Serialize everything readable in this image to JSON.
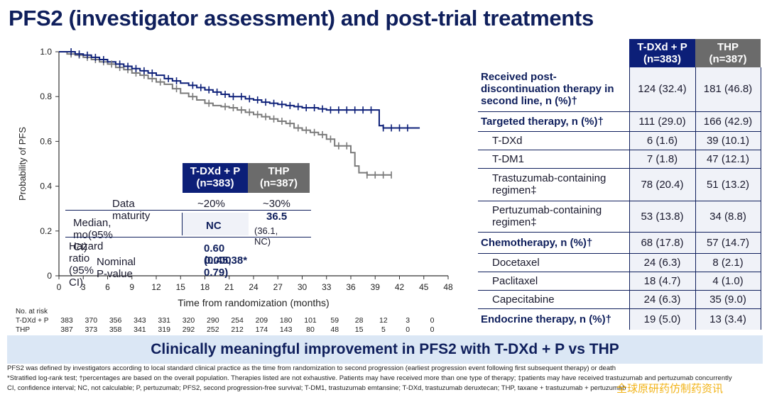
{
  "title": "PFS2 (investigator assessment) and post-trial treatments",
  "chart_data": {
    "type": "line",
    "subtype": "kaplan-meier",
    "xlabel": "Time from randomization (months)",
    "ylabel": "Probability of PFS",
    "xlim": [
      0,
      48
    ],
    "ylim": [
      0,
      1.0
    ],
    "xticks": [
      0,
      3,
      6,
      9,
      12,
      15,
      18,
      21,
      24,
      27,
      30,
      33,
      36,
      39,
      42,
      45,
      48
    ],
    "yticks": [
      {
        "v": 0,
        "label": "0"
      },
      {
        "v": 0.2,
        "label": "0.2"
      },
      {
        "v": 0.4,
        "label": "0.4"
      },
      {
        "v": 0.6,
        "label": "0.6"
      },
      {
        "v": 0.8,
        "label": "0.8"
      },
      {
        "v": 1.0,
        "label": "1.0"
      }
    ],
    "series": [
      {
        "name": "T-DXd + P",
        "color": "#0c1f78",
        "x": [
          0,
          1,
          2,
          3,
          4,
          5,
          6,
          7,
          8,
          9,
          10,
          11,
          12,
          13,
          14,
          15,
          16,
          17,
          18,
          19,
          20,
          21,
          22,
          23,
          24,
          25,
          26,
          27,
          28,
          29,
          30,
          31,
          32,
          33,
          34,
          35,
          36,
          37,
          38,
          39,
          39.5,
          40,
          41,
          42,
          44.5
        ],
        "y": [
          1.0,
          1.0,
          0.99,
          0.985,
          0.975,
          0.965,
          0.955,
          0.945,
          0.935,
          0.925,
          0.915,
          0.905,
          0.895,
          0.88,
          0.87,
          0.86,
          0.85,
          0.84,
          0.83,
          0.82,
          0.81,
          0.8,
          0.8,
          0.79,
          0.785,
          0.775,
          0.77,
          0.765,
          0.76,
          0.755,
          0.75,
          0.75,
          0.745,
          0.74,
          0.74,
          0.74,
          0.74,
          0.74,
          0.74,
          0.74,
          0.67,
          0.66,
          0.66,
          0.66,
          0.66
        ],
        "censors": [
          1.5,
          2.5,
          3.5,
          4.5,
          5.5,
          7.5,
          8.5,
          9.5,
          10.5,
          11.5,
          13.5,
          14.5,
          16.5,
          17.5,
          18.5,
          19.5,
          20.5,
          21.5,
          22.5,
          23.5,
          24.5,
          25.5,
          26.5,
          27.5,
          28.5,
          29.5,
          30.5,
          31.5,
          32.5,
          33.5,
          34.5,
          35.5,
          36.5,
          37.5,
          38.5,
          40,
          41,
          42,
          43
        ]
      },
      {
        "name": "THP",
        "color": "#7a7a7a",
        "x": [
          0,
          1,
          2,
          3,
          4,
          5,
          6,
          7,
          8,
          9,
          10,
          11,
          12,
          13,
          14,
          15,
          16,
          17,
          18,
          19,
          20,
          21,
          22,
          23,
          24,
          25,
          26,
          27,
          28,
          29,
          30,
          31,
          32,
          33,
          34,
          35,
          36,
          36.5,
          37,
          38,
          39,
          40,
          41
        ],
        "y": [
          1.0,
          0.99,
          0.985,
          0.975,
          0.965,
          0.955,
          0.945,
          0.93,
          0.92,
          0.905,
          0.895,
          0.88,
          0.865,
          0.855,
          0.835,
          0.815,
          0.8,
          0.785,
          0.77,
          0.76,
          0.755,
          0.75,
          0.74,
          0.73,
          0.72,
          0.71,
          0.7,
          0.69,
          0.68,
          0.66,
          0.65,
          0.64,
          0.63,
          0.61,
          0.58,
          0.58,
          0.55,
          0.49,
          0.46,
          0.45,
          0.45,
          0.45,
          0.45
        ],
        "censors": [
          1.5,
          2.5,
          3.5,
          4.5,
          5.5,
          6.5,
          7.5,
          8.5,
          9.5,
          10.5,
          11.5,
          12.5,
          14.5,
          16.5,
          18.5,
          20.5,
          21.5,
          22.5,
          23.5,
          24.5,
          25.5,
          26.5,
          27.5,
          28.5,
          29.5,
          30.5,
          31.5,
          32.5,
          33.5,
          34.5,
          35.5,
          38,
          39,
          40,
          41
        ]
      }
    ],
    "risk_table": {
      "header": "No. at risk",
      "rows": [
        {
          "label": "T-DXd + P",
          "values": [
            "383",
            "370",
            "356",
            "343",
            "331",
            "320",
            "290",
            "254",
            "209",
            "180",
            "101",
            "59",
            "28",
            "12",
            "3",
            "0"
          ]
        },
        {
          "label": "THP",
          "values": [
            "387",
            "373",
            "358",
            "341",
            "319",
            "292",
            "252",
            "212",
            "174",
            "143",
            "80",
            "48",
            "15",
            "5",
            "0",
            "0"
          ]
        }
      ]
    }
  },
  "inset": {
    "col1": "T-DXd + P\n(n=383)",
    "col2": "THP\n(n=387)",
    "maturity_label": "Data maturity",
    "maturity_v1": "~20%",
    "maturity_v2": "~30%",
    "median_label": "Median, mo(95% CI)",
    "median_v1": "NC",
    "median_v2": "36.5",
    "median_v2_ci": "(36.1, NC)",
    "hr_label": "Hazard ratio (95% CI)",
    "hr_value": "0.60 (0.45, 0.79)",
    "p_label": "Nominal P-value",
    "p_value": "0.00038*"
  },
  "table": {
    "col1": "T-DXd + P\n(n=383)",
    "col2": "THP\n(n=387)",
    "rows": [
      {
        "label": "Received post-discontinuation therapy in second line, n (%)†",
        "v1": "124 (32.4)",
        "v2": "181 (46.8)"
      },
      {
        "label": "Targeted therapy, n (%)†",
        "v1": "111 (29.0)",
        "v2": "166 (42.9)"
      },
      {
        "label": "T-DXd",
        "v1": "6 (1.6)",
        "v2": "39 (10.1)"
      },
      {
        "label": "T-DM1",
        "v1": "7 (1.8)",
        "v2": "47 (12.1)"
      },
      {
        "label": "Trastuzumab-containing regimen‡",
        "v1": "78 (20.4)",
        "v2": "51 (13.2)"
      },
      {
        "label": "Pertuzumab-containing regimen‡",
        "v1": "53 (13.8)",
        "v2": "34 (8.8)"
      },
      {
        "label": "Chemotherapy, n (%)†",
        "v1": "68 (17.8)",
        "v2": "57 (14.7)"
      },
      {
        "label": "Docetaxel",
        "v1": "24 (6.3)",
        "v2": "8 (2.1)"
      },
      {
        "label": "Paclitaxel",
        "v1": "18 (4.7)",
        "v2": "4 (1.0)"
      },
      {
        "label": "Capecitabine",
        "v1": "24 (6.3)",
        "v2": "35 (9.0)"
      },
      {
        "label": "Endocrine therapy, n (%)†",
        "v1": "19 (5.0)",
        "v2": "13 (3.4)"
      }
    ]
  },
  "banner": "Clinically meaningful improvement in PFS2 with T-DXd + P vs THP",
  "footnotes": [
    "PFS2 was defined by investigators according to local standard clinical practice as the time from randomization to second progression (earliest progression event following first subsequent therapy) or death",
    "*Stratified log-rank test; †percentages are based on the overall population. Therapies listed are not exhaustive. Patients may have received more than one type of therapy; ‡patients may have received trastuzumab and pertuzumab concurrently",
    "CI, confidence interval; NC, not calculable; P, pertuzumab; PFS2, second progression-free survival; T-DM1, trastuzumab emtansine; T-DXd, trastuzumab deruxtecan; THP, taxane + trastuzumab + pertuzumab"
  ],
  "watermark": "全球原研药仿制药资讯"
}
